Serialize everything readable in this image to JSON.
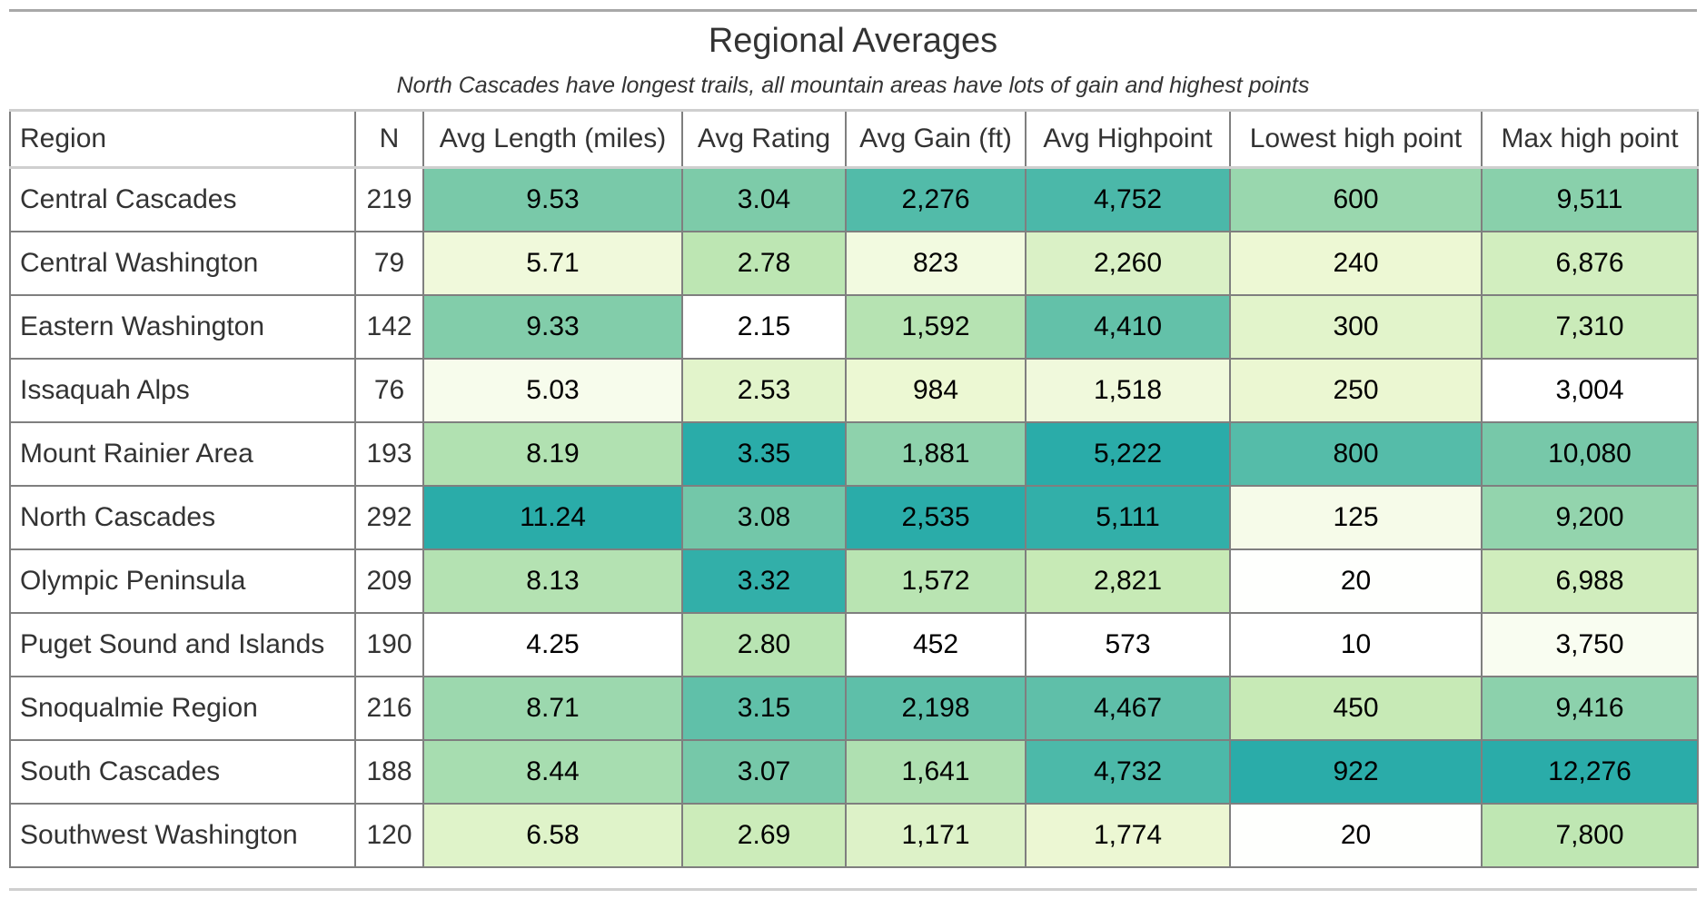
{
  "chart_data": {
    "type": "table",
    "title": "Regional Averages",
    "subtitle": "North Cascades have longest trails, all mountain areas have lots of gain and highest points",
    "columns": [
      "Region",
      "N",
      "Avg Length (miles)",
      "Avg Rating",
      "Avg Gain (ft)",
      "Avg Highpoint",
      "Lowest high point",
      "Max high point"
    ],
    "rows": [
      {
        "cells": [
          "Central Cascades",
          "219",
          "9.53",
          "3.04",
          "2,276",
          "4,752",
          "600",
          "9,511"
        ],
        "values": [
          9.53,
          3.04,
          2276,
          4752,
          600,
          9511
        ]
      },
      {
        "cells": [
          "Central Washington",
          "79",
          "5.71",
          "2.78",
          "823",
          "2,260",
          "240",
          "6,876"
        ],
        "values": [
          5.71,
          2.78,
          823,
          2260,
          240,
          6876
        ]
      },
      {
        "cells": [
          "Eastern Washington",
          "142",
          "9.33",
          "2.15",
          "1,592",
          "4,410",
          "300",
          "7,310"
        ],
        "values": [
          9.33,
          2.15,
          1592,
          4410,
          300,
          7310
        ]
      },
      {
        "cells": [
          "Issaquah Alps",
          "76",
          "5.03",
          "2.53",
          "984",
          "1,518",
          "250",
          "3,004"
        ],
        "values": [
          5.03,
          2.53,
          984,
          1518,
          250,
          3004
        ]
      },
      {
        "cells": [
          "Mount Rainier Area",
          "193",
          "8.19",
          "3.35",
          "1,881",
          "5,222",
          "800",
          "10,080"
        ],
        "values": [
          8.19,
          3.35,
          1881,
          5222,
          800,
          10080
        ]
      },
      {
        "cells": [
          "North Cascades",
          "292",
          "11.24",
          "3.08",
          "2,535",
          "5,111",
          "125",
          "9,200"
        ],
        "values": [
          11.24,
          3.08,
          2535,
          5111,
          125,
          9200
        ]
      },
      {
        "cells": [
          "Olympic Peninsula",
          "209",
          "8.13",
          "3.32",
          "1,572",
          "2,821",
          "20",
          "6,988"
        ],
        "values": [
          8.13,
          3.32,
          1572,
          2821,
          20,
          6988
        ]
      },
      {
        "cells": [
          "Puget Sound and Islands",
          "190",
          "4.25",
          "2.80",
          "452",
          "573",
          "10",
          "3,750"
        ],
        "values": [
          4.25,
          2.8,
          452,
          573,
          10,
          3750
        ]
      },
      {
        "cells": [
          "Snoqualmie Region",
          "216",
          "8.71",
          "3.15",
          "2,198",
          "4,467",
          "450",
          "9,416"
        ],
        "values": [
          8.71,
          3.15,
          2198,
          4467,
          450,
          9416
        ]
      },
      {
        "cells": [
          "South Cascades",
          "188",
          "8.44",
          "3.07",
          "1,641",
          "4,732",
          "922",
          "12,276"
        ],
        "values": [
          8.44,
          3.07,
          1641,
          4732,
          922,
          12276
        ]
      },
      {
        "cells": [
          "Southwest Washington",
          "120",
          "6.58",
          "2.69",
          "1,171",
          "1,774",
          "20",
          "7,800"
        ],
        "values": [
          6.58,
          2.69,
          1171,
          1774,
          20,
          7800
        ]
      }
    ],
    "color_scale": {
      "low": "#ffffff",
      "mid_low": "#edf8d4",
      "mid": "#c4e9b4",
      "mid_high": "#7bcaa9",
      "high": "#2aaca9"
    }
  }
}
